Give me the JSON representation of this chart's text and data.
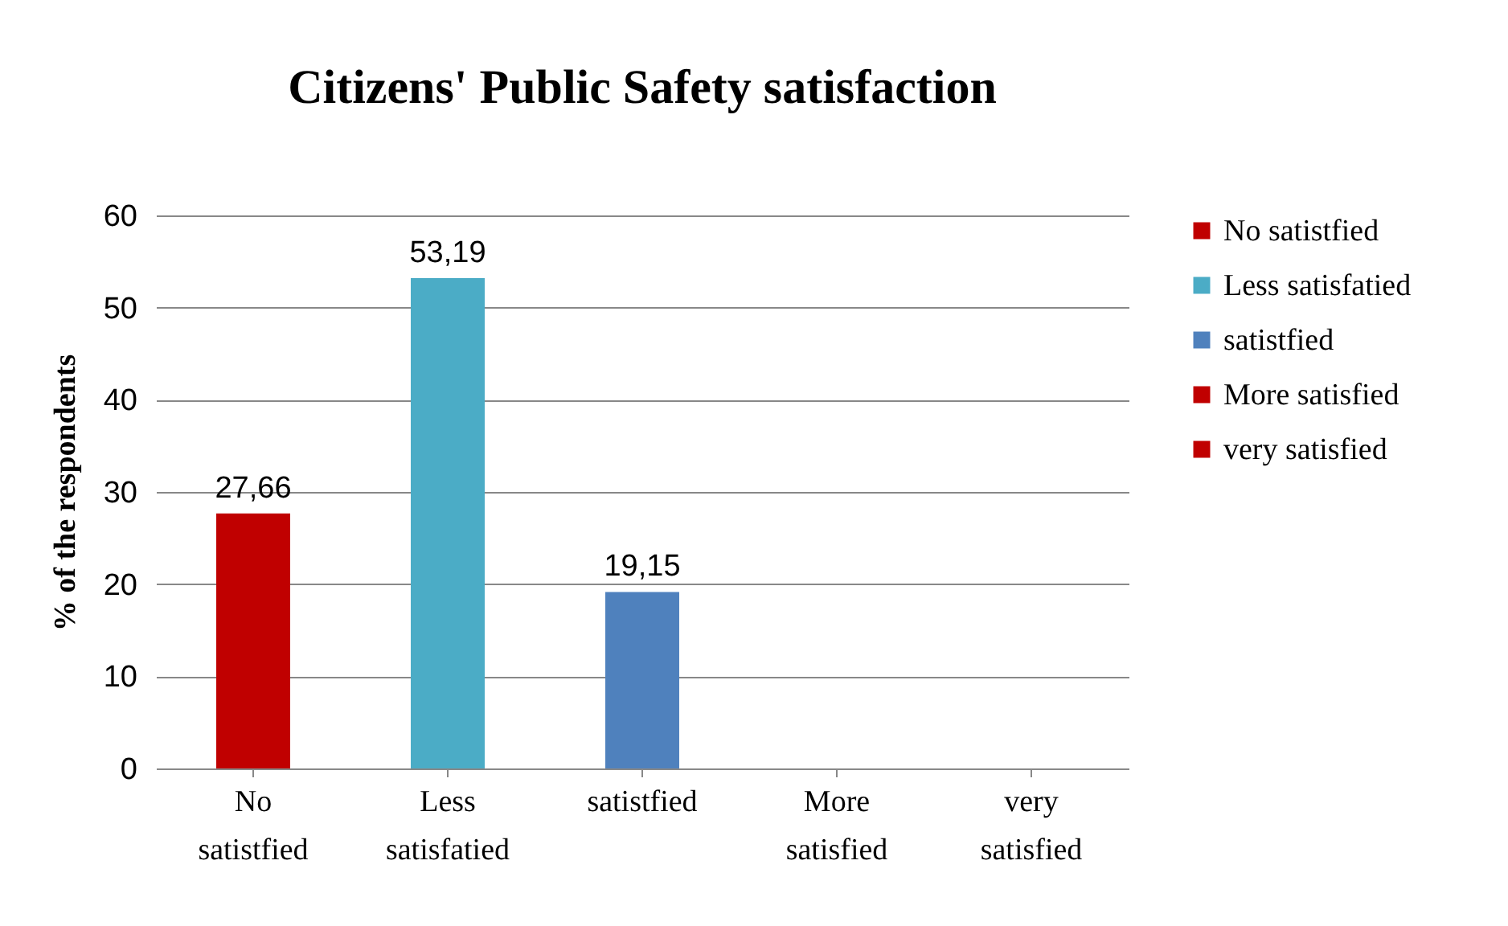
{
  "chart_data": {
    "type": "bar",
    "title": "Citizens' Public Safety satisfaction",
    "ylabel": "% of the respondents",
    "categories": [
      "No satistfied",
      "Less satisfatied",
      "satistfied",
      "More satisfied",
      "very satisfied"
    ],
    "series": [
      {
        "name": "No satistfied",
        "color": "#c00000",
        "values": [
          27.66,
          null,
          null,
          null,
          null
        ],
        "value_labels": [
          "27,66",
          null,
          null,
          null,
          null
        ]
      },
      {
        "name": "Less satisfatied",
        "color": "#4bacc6",
        "values": [
          null,
          53.19,
          null,
          null,
          null
        ],
        "value_labels": [
          null,
          "53,19",
          null,
          null,
          null
        ]
      },
      {
        "name": "satistfied",
        "color": "#4f81bd",
        "values": [
          null,
          null,
          19.15,
          null,
          null
        ],
        "value_labels": [
          null,
          null,
          "19,15",
          null,
          null
        ]
      },
      {
        "name": "More satisfied",
        "color": "#c00000",
        "values": [
          null,
          null,
          null,
          null,
          null
        ]
      },
      {
        "name": "very satisfied",
        "color": "#c00000",
        "values": [
          null,
          null,
          null,
          null,
          null
        ]
      }
    ],
    "ylim": [
      0,
      60
    ],
    "yticks": [
      0,
      10,
      20,
      30,
      40,
      50,
      60
    ],
    "grid": "y",
    "legend": "right"
  }
}
